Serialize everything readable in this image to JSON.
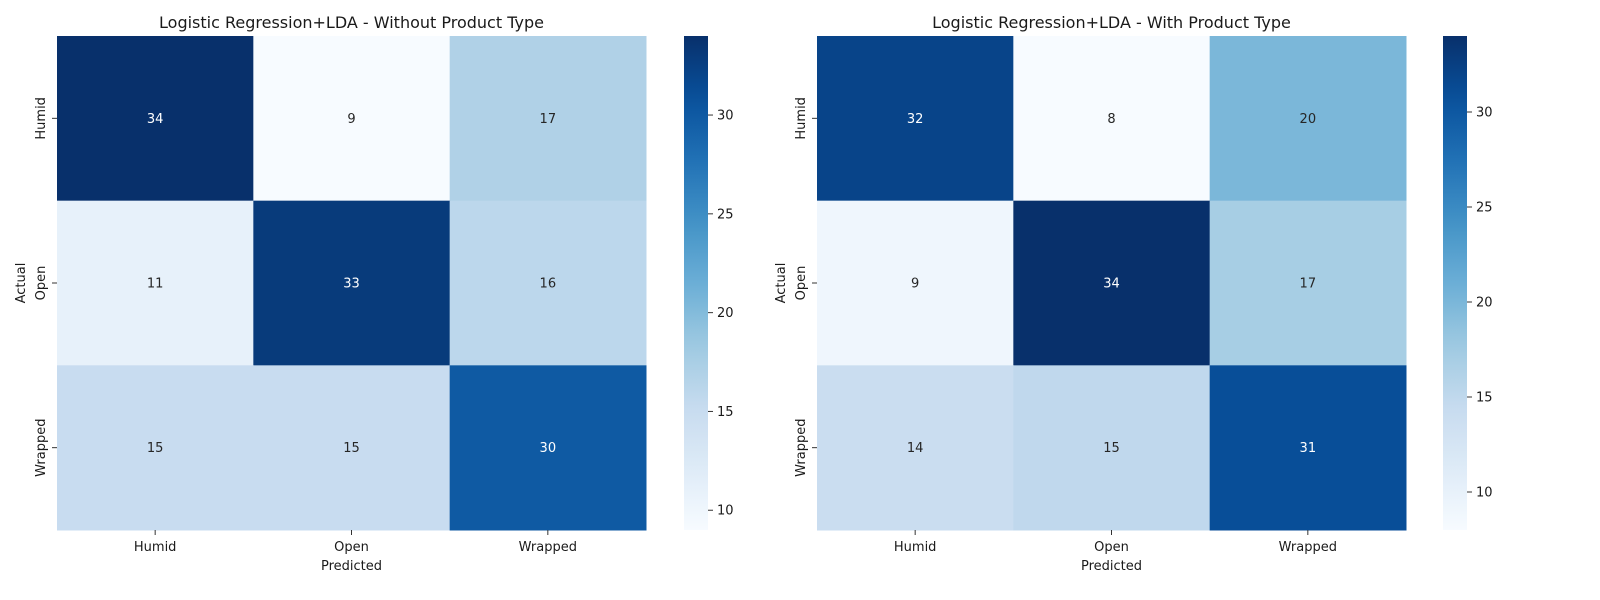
{
  "chart_data": [
    {
      "type": "heatmap",
      "title": "Logistic Regression+LDA - Without Product Type",
      "xlabel": "Predicted",
      "ylabel": "Actual",
      "x_categories": [
        "Humid",
        "Open",
        "Wrapped"
      ],
      "y_categories": [
        "Humid",
        "Open",
        "Wrapped"
      ],
      "values": [
        [
          34,
          9,
          17
        ],
        [
          11,
          33,
          16
        ],
        [
          15,
          15,
          30
        ]
      ],
      "colormap": "Blues",
      "colorbar": {
        "min": 9,
        "max": 34,
        "ticks": [
          10,
          15,
          20,
          25,
          30
        ]
      }
    },
    {
      "type": "heatmap",
      "title": "Logistic Regression+LDA - With Product Type",
      "xlabel": "Predicted",
      "ylabel": "Actual",
      "x_categories": [
        "Humid",
        "Open",
        "Wrapped"
      ],
      "y_categories": [
        "Humid",
        "Open",
        "Wrapped"
      ],
      "values": [
        [
          32,
          8,
          20
        ],
        [
          9,
          34,
          17
        ],
        [
          14,
          15,
          31
        ]
      ],
      "colormap": "Blues",
      "colorbar": {
        "min": 8,
        "max": 34,
        "ticks": [
          10,
          15,
          20,
          25,
          30
        ]
      }
    }
  ]
}
